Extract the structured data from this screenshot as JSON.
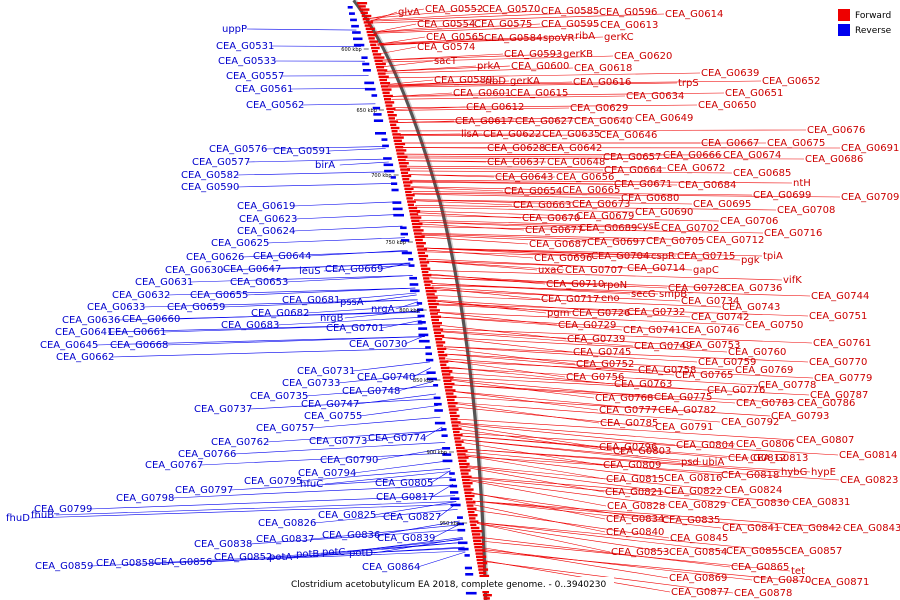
{
  "caption": "Clostridium acetobutylicum EA 2018, complete genome. - 0..3940230",
  "legend": [
    {
      "label": "Forward",
      "color": "#ee0000"
    },
    {
      "label": "Reverse",
      "color": "#0000ee"
    }
  ],
  "scale_ticks": [
    "600 kbp",
    "650 kbp",
    "700 kbp",
    "750 kbp",
    "800 kbp",
    "850 kbp",
    "900 kbp",
    "950 kbp"
  ],
  "forward_labels": [
    [
      "glvA",
      397,
      12
    ],
    [
      "CEA_G0552",
      424,
      9
    ],
    [
      "CEA_G0570",
      481,
      9
    ],
    [
      "CEA_G0585",
      540,
      11
    ],
    [
      "CEA_G0596",
      598,
      12
    ],
    [
      "CEA_G0614",
      664,
      14
    ],
    [
      "CEA_G0554",
      416,
      24
    ],
    [
      "CEA_G0575",
      473,
      24
    ],
    [
      "CEA_G0595",
      540,
      24
    ],
    [
      "CEA_G0613",
      599,
      25
    ],
    [
      "CEA_G0565",
      425,
      37
    ],
    [
      "CEA_G0584",
      483,
      38
    ],
    [
      "spoVR",
      542,
      38
    ],
    [
      "ribA",
      574,
      36
    ],
    [
      "gerKC",
      603,
      37
    ],
    [
      "CEA_G0574",
      416,
      47
    ],
    [
      "sacT",
      433,
      61
    ],
    [
      "CEA_G0593",
      503,
      54
    ],
    [
      "gerKB",
      562,
      54
    ],
    [
      "CEA_G0620",
      613,
      56
    ],
    [
      "prkA",
      476,
      66
    ],
    [
      "CEA_G0600",
      510,
      66
    ],
    [
      "CEA_G0618",
      573,
      68
    ],
    [
      "CEA_G0589",
      433,
      80
    ],
    [
      "ribD",
      484,
      81
    ],
    [
      "gerKA",
      509,
      81
    ],
    [
      "CEA_G0616",
      572,
      82
    ],
    [
      "CEA_G0639",
      700,
      73
    ],
    [
      "CEA_G0652",
      761,
      81
    ],
    [
      "trpS",
      677,
      83
    ],
    [
      "CEA_G0601",
      452,
      93
    ],
    [
      "CEA_G0615",
      509,
      93
    ],
    [
      "CEA_G0634",
      625,
      96
    ],
    [
      "CEA_G0651",
      724,
      93
    ],
    [
      "CEA_G0612",
      465,
      107
    ],
    [
      "CEA_G0629",
      569,
      108
    ],
    [
      "CEA_G0650",
      697,
      105
    ],
    [
      "CEA_G0617",
      454,
      121
    ],
    [
      "CEA_G0627",
      514,
      121
    ],
    [
      "CEA_G0640",
      573,
      121
    ],
    [
      "CEA_G0649",
      634,
      118
    ],
    [
      "lisA",
      460,
      134
    ],
    [
      "CEA_G0622",
      482,
      134
    ],
    [
      "CEA_G0635",
      541,
      134
    ],
    [
      "CEA_G0646",
      598,
      135
    ],
    [
      "CEA_G0676",
      806,
      130
    ],
    [
      "CEA_G0628",
      486,
      148
    ],
    [
      "CEA_G0642",
      543,
      148
    ],
    [
      "CEA_G0667",
      700,
      143
    ],
    [
      "CEA_G0675",
      766,
      143
    ],
    [
      "CEA_G0691",
      840,
      148
    ],
    [
      "CEA_G0637",
      486,
      162
    ],
    [
      "CEA_G0648",
      546,
      162
    ],
    [
      "CEA_G0657",
      602,
      157
    ],
    [
      "CEA_G0666",
      662,
      155
    ],
    [
      "CEA_G0674",
      722,
      155
    ],
    [
      "CEA_G0686",
      804,
      159
    ],
    [
      "CEA_G0664",
      603,
      170
    ],
    [
      "CEA_G0672",
      666,
      168
    ],
    [
      "CEA_G0685",
      732,
      173
    ],
    [
      "CEA_G0643",
      494,
      177
    ],
    [
      "CEA_G0656",
      555,
      177
    ],
    [
      "CEA_G0671",
      613,
      184
    ],
    [
      "CEA_G0684",
      677,
      185
    ],
    [
      "ntH",
      792,
      183
    ],
    [
      "CEA_G0654",
      503,
      191
    ],
    [
      "CEA_G0665",
      561,
      190
    ],
    [
      "CEA_G0680",
      620,
      198
    ],
    [
      "CEA_G0699",
      752,
      195
    ],
    [
      "CEA_G0709",
      840,
      197
    ],
    [
      "CEA_G0663",
      512,
      205
    ],
    [
      "CEA_G0673",
      571,
      204
    ],
    [
      "CEA_G0695",
      692,
      204
    ],
    [
      "CEA_G0708",
      776,
      210
    ],
    [
      "CEA_G0670",
      521,
      218
    ],
    [
      "CEA_G0679",
      575,
      216
    ],
    [
      "CEA_G0690",
      634,
      212
    ],
    [
      "CEA_G0706",
      719,
      221
    ],
    [
      "CEA_G0677",
      524,
      230
    ],
    [
      "CEA_G0689",
      578,
      228
    ],
    [
      "cysE",
      636,
      226
    ],
    [
      "CEA_G0702",
      660,
      228
    ],
    [
      "CEA_G0716",
      763,
      233
    ],
    [
      "CEA_G0687",
      528,
      244
    ],
    [
      "CEA_G0697",
      586,
      242
    ],
    [
      "CEA_G0705",
      645,
      241
    ],
    [
      "CEA_G0712",
      705,
      240
    ],
    [
      "CEA_G0696",
      533,
      258
    ],
    [
      "CEA_G0704",
      590,
      256
    ],
    [
      "cspR",
      650,
      256
    ],
    [
      "CEA_G0715",
      676,
      256
    ],
    [
      "pgk",
      740,
      260
    ],
    [
      "tpiA",
      762,
      256
    ],
    [
      "uxaC",
      537,
      270
    ],
    [
      "CEA_G0707",
      564,
      270
    ],
    [
      "CEA_G0714",
      626,
      268
    ],
    [
      "gapC",
      692,
      270
    ],
    [
      "CEA_G0710",
      545,
      284
    ],
    [
      "rpoN",
      602,
      285
    ],
    [
      "CEA_G0728",
      667,
      288
    ],
    [
      "CEA_G0736",
      723,
      288
    ],
    [
      "vifK",
      782,
      280
    ],
    [
      "CEA_G0744",
      810,
      296
    ],
    [
      "CEA_G0717",
      540,
      299
    ],
    [
      "eno",
      600,
      298
    ],
    [
      "secG",
      630,
      294
    ],
    [
      "smpB",
      658,
      294
    ],
    [
      "CEA_G0734",
      680,
      301
    ],
    [
      "CEA_G0743",
      721,
      307
    ],
    [
      "pgm",
      546,
      313
    ],
    [
      "CEA_G0726",
      571,
      313
    ],
    [
      "CEA_G0732",
      626,
      312
    ],
    [
      "CEA_G0742",
      690,
      317
    ],
    [
      "CEA_G0751",
      808,
      316
    ],
    [
      "CEA_G0729",
      557,
      325
    ],
    [
      "CEA_G0741",
      622,
      330
    ],
    [
      "CEA_G0746",
      680,
      330
    ],
    [
      "CEA_G0750",
      744,
      325
    ],
    [
      "CEA_G0739",
      566,
      339
    ],
    [
      "CEA_G0749",
      633,
      346
    ],
    [
      "CEA_G0753",
      681,
      345
    ],
    [
      "CEA_G0761",
      812,
      343
    ],
    [
      "CEA_G0745",
      572,
      352
    ],
    [
      "CEA_G0760",
      727,
      352
    ],
    [
      "CEA_G0770",
      808,
      362
    ],
    [
      "CEA_G0752",
      575,
      364
    ],
    [
      "CEA_G0758",
      637,
      370
    ],
    [
      "CEA_G0759",
      697,
      362
    ],
    [
      "CEA_G0769",
      734,
      370
    ],
    [
      "CEA_G0756",
      565,
      377
    ],
    [
      "CEA_G0763",
      613,
      384
    ],
    [
      "CEA_G0765",
      674,
      375
    ],
    [
      "CEA_G0778",
      757,
      385
    ],
    [
      "CEA_G0779",
      813,
      378
    ],
    [
      "CEA_G0768",
      594,
      398
    ],
    [
      "CEA_G0775",
      653,
      397
    ],
    [
      "CEA_G0776",
      706,
      390
    ],
    [
      "CEA_G0783",
      735,
      403
    ],
    [
      "CEA_G0786",
      796,
      403
    ],
    [
      "CEA_G0787",
      809,
      395
    ],
    [
      "CEA_G0777",
      598,
      410
    ],
    [
      "CEA_G0782",
      657,
      410
    ],
    [
      "CEA_G0793",
      770,
      416
    ],
    [
      "CEA_G0785",
      599,
      423
    ],
    [
      "CEA_G0791",
      654,
      427
    ],
    [
      "CEA_G0792",
      720,
      422
    ],
    [
      "CEA_G0807",
      795,
      440
    ],
    [
      "CEA_G0796",
      598,
      447
    ],
    [
      "CEA_G0804",
      675,
      445
    ],
    [
      "CEA_G0806",
      735,
      444
    ],
    [
      "CEA_G0814",
      838,
      455
    ],
    [
      "CEA_G0803",
      612,
      451
    ],
    [
      "CEA_G0813",
      749,
      458
    ],
    [
      "CEA_G0809",
      602,
      465
    ],
    [
      "psd",
      680,
      462
    ],
    [
      "ubiA",
      701,
      462
    ],
    [
      "CEA_G0812",
      727,
      458
    ],
    [
      "CEA_G0823",
      839,
      480
    ],
    [
      "CEA_G0815",
      605,
      479
    ],
    [
      "CEA_G0816",
      663,
      478
    ],
    [
      "CEA_G0818",
      720,
      475
    ],
    [
      "hybG",
      780,
      472
    ],
    [
      "hypE",
      810,
      472
    ],
    [
      "CEA_G0821",
      604,
      492
    ],
    [
      "CEA_G0822",
      663,
      491
    ],
    [
      "CEA_G0824",
      723,
      490
    ],
    [
      "CEA_G0828",
      606,
      506
    ],
    [
      "CEA_G0829",
      667,
      505
    ],
    [
      "CEA_G0830",
      730,
      503
    ],
    [
      "CEA_G0831",
      791,
      502
    ],
    [
      "CEA_G0834",
      605,
      519
    ],
    [
      "CEA_G0835",
      661,
      520
    ],
    [
      "CEA_G0840",
      605,
      532
    ],
    [
      "CEA_G0841",
      721,
      528
    ],
    [
      "CEA_G0842",
      782,
      528
    ],
    [
      "CEA_G0843",
      842,
      528
    ],
    [
      "CEA_G0845",
      669,
      538
    ],
    [
      "CEA_G0853",
      610,
      552
    ],
    [
      "CEA_G0854",
      668,
      552
    ],
    [
      "CEA_G0855",
      725,
      551
    ],
    [
      "CEA_G0857",
      783,
      551
    ],
    [
      "CEA_G0865",
      730,
      567
    ],
    [
      "tet",
      790,
      571
    ],
    [
      "CEA_G0869",
      668,
      578
    ],
    [
      "CEA_G0870",
      752,
      580
    ],
    [
      "CEA_G0871",
      810,
      582
    ],
    [
      "CEA_G0877",
      670,
      592
    ],
    [
      "CEA_G0878",
      733,
      593
    ]
  ],
  "reverse_labels": [
    [
      "uppP",
      222,
      29
    ],
    [
      "CEA_G0531",
      216,
      46
    ],
    [
      "CEA_G0533",
      218,
      61
    ],
    [
      "CEA_G0557",
      226,
      76
    ],
    [
      "CEA_G0561",
      235,
      89
    ],
    [
      "CEA_G0562",
      246,
      105
    ],
    [
      "CEA_G0576",
      209,
      149
    ],
    [
      "CEA_G0591",
      273,
      151
    ],
    [
      "CEA_G0577",
      192,
      162
    ],
    [
      "CEA_G0582",
      181,
      175
    ],
    [
      "birA",
      315,
      165
    ],
    [
      "CEA_G0590",
      181,
      187
    ],
    [
      "CEA_G0619",
      237,
      206
    ],
    [
      "CEA_G0623",
      239,
      219
    ],
    [
      "CEA_G0624",
      237,
      231
    ],
    [
      "CEA_G0625",
      211,
      243
    ],
    [
      "CEA_G0626",
      186,
      257
    ],
    [
      "CEA_G0644",
      253,
      256
    ],
    [
      "CEA_G0630",
      165,
      270
    ],
    [
      "CEA_G0647",
      223,
      269
    ],
    [
      "leuS",
      299,
      271
    ],
    [
      "CEA_G0669",
      325,
      269
    ],
    [
      "CEA_G0631",
      135,
      282
    ],
    [
      "CEA_G0653",
      230,
      282
    ],
    [
      "CEA_G0632",
      112,
      295
    ],
    [
      "CEA_G0655",
      190,
      295
    ],
    [
      "CEA_G0681",
      282,
      300
    ],
    [
      "pssA",
      340,
      302
    ],
    [
      "CEA_G0633",
      87,
      307
    ],
    [
      "CEA_G0659",
      167,
      307
    ],
    [
      "CEA_G0682",
      251,
      313
    ],
    [
      "nrgA",
      371,
      309
    ],
    [
      "CEA_G0636",
      62,
      320
    ],
    [
      "CEA_G0660",
      122,
      319
    ],
    [
      "nrgB",
      320,
      318
    ],
    [
      "CEA_G0683",
      221,
      325
    ],
    [
      "CEA_G0701",
      326,
      328
    ],
    [
      "CEA_G0641",
      55,
      332
    ],
    [
      "CEA_G0661",
      108,
      332
    ],
    [
      "CEA_G0645",
      40,
      345
    ],
    [
      "CEA_G0668",
      110,
      345
    ],
    [
      "CEA_G0730",
      349,
      344
    ],
    [
      "CEA_G0662",
      56,
      357
    ],
    [
      "CEA_G0731",
      297,
      371
    ],
    [
      "CEA_G0740",
      357,
      377
    ],
    [
      "CEA_G0733",
      282,
      383
    ],
    [
      "CEA_G0748",
      342,
      391
    ],
    [
      "CEA_G0735",
      250,
      396
    ],
    [
      "CEA_G0747",
      301,
      404
    ],
    [
      "CEA_G0737",
      194,
      409
    ],
    [
      "CEA_G0755",
      304,
      416
    ],
    [
      "CEA_G0757",
      256,
      428
    ],
    [
      "CEA_G0762",
      211,
      442
    ],
    [
      "CEA_G0773",
      309,
      441
    ],
    [
      "CEA_G0774",
      368,
      438
    ],
    [
      "CEA_G0766",
      178,
      454
    ],
    [
      "CEA_G0790",
      320,
      460
    ],
    [
      "CEA_G0767",
      145,
      465
    ],
    [
      "CEA_G0794",
      298,
      473
    ],
    [
      "CEA_G0795",
      244,
      481
    ],
    [
      "hfuC",
      300,
      484
    ],
    [
      "CEA_G0805",
      375,
      483
    ],
    [
      "CEA_G0797",
      175,
      490
    ],
    [
      "CEA_G0798",
      116,
      498
    ],
    [
      "CEA_G0817",
      376,
      497
    ],
    [
      "CEA_G0799",
      34,
      509
    ],
    [
      "fhuD",
      6,
      518
    ],
    [
      "fhuB",
      31,
      515
    ],
    [
      "CEA_G0825",
      318,
      515
    ],
    [
      "CEA_G0827",
      383,
      517
    ],
    [
      "CEA_G0826",
      258,
      523
    ],
    [
      "CEA_G0836",
      322,
      535
    ],
    [
      "CEA_G0839",
      377,
      538
    ],
    [
      "CEA_G0837",
      256,
      539
    ],
    [
      "CEA_G0838",
      194,
      544
    ],
    [
      "CEA_G0852",
      214,
      557
    ],
    [
      "potA",
      269,
      557
    ],
    [
      "potB",
      296,
      554
    ],
    [
      "potC",
      322,
      552
    ],
    [
      "potD",
      349,
      553
    ],
    [
      "CEA_G0856",
      154,
      562
    ],
    [
      "CEA_G0858",
      96,
      563
    ],
    [
      "CEA_G0859",
      35,
      566
    ],
    [
      "CEA_G0864",
      362,
      567
    ]
  ]
}
